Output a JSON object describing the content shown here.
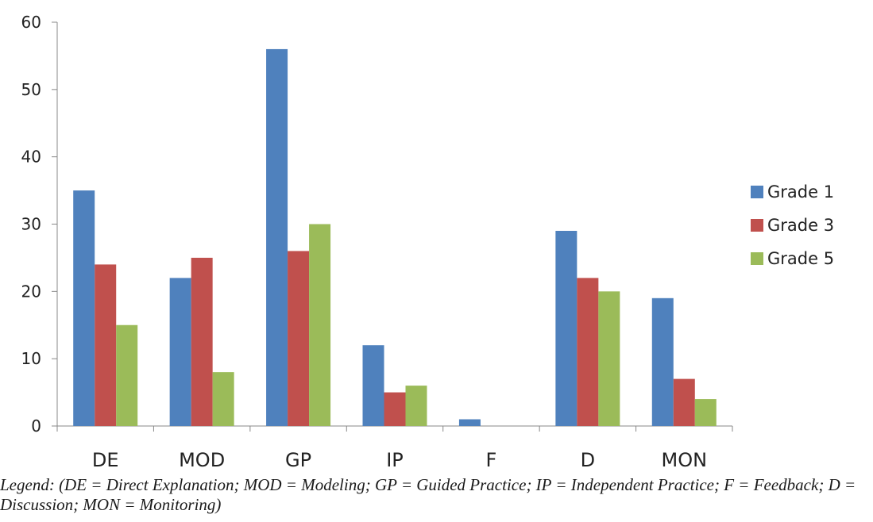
{
  "chart_data": {
    "type": "bar",
    "categories": [
      "DE",
      "MOD",
      "GP",
      "IP",
      "F",
      "D",
      "MON"
    ],
    "series": [
      {
        "name": "Grade 1",
        "color": "#4F81BD",
        "values": [
          35,
          22,
          56,
          12,
          1,
          29,
          19
        ]
      },
      {
        "name": "Grade 3",
        "color": "#C0504D",
        "values": [
          24,
          25,
          26,
          5,
          0,
          22,
          7
        ]
      },
      {
        "name": "Grade 5",
        "color": "#9BBB59",
        "values": [
          15,
          8,
          30,
          6,
          0,
          20,
          4
        ]
      }
    ],
    "ylim": [
      0,
      60
    ],
    "yticks": [
      0,
      10,
      20,
      30,
      40,
      50,
      60
    ],
    "grid": false,
    "legend_position": "right"
  },
  "caption": "Legend: (DE = Direct Explanation; MOD = Modeling; GP = Guided Practice; IP = Independent Practice; F = Feedback; D = Discussion; MON = Monitoring)"
}
